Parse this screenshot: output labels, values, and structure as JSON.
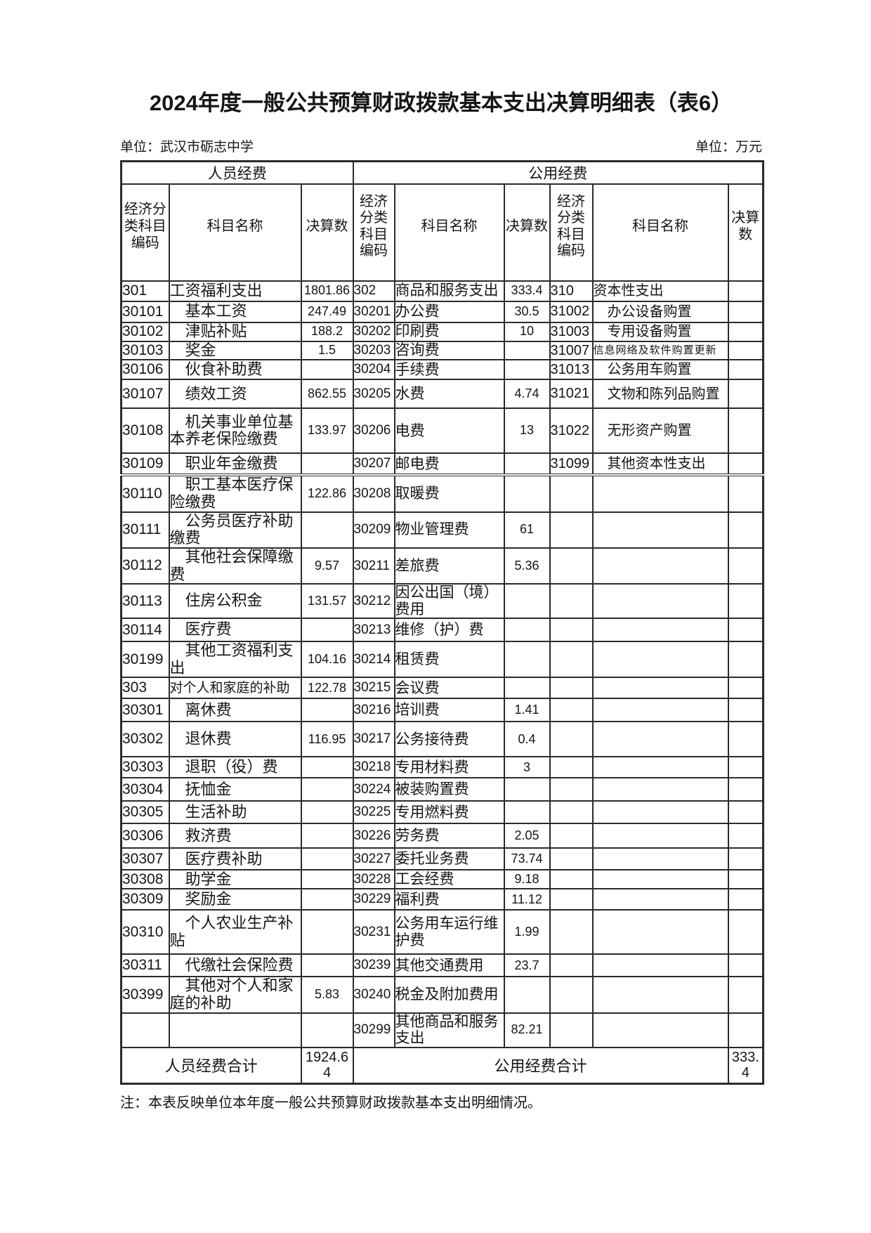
{
  "title": "2024年度一般公共预算财政拨款基本支出决算明细表（表6）",
  "unit_left": "单位：武汉市砺志中学",
  "unit_right": "单位：万元",
  "note": "注：本表反映单位本年度一般公共预算财政拨款基本支出明细情况。",
  "table": {
    "group_headers": [
      "人员经费",
      "公用经费"
    ],
    "col_headers": [
      "经济分类科目编码",
      "科目名称",
      "决算数",
      "经济分类科目编码",
      "科目名称",
      "决算数",
      "经济分类科目编码",
      "科目名称",
      "决算数"
    ],
    "rows": [
      {
        "l": {
          "code": "301",
          "name": "工资福利支出",
          "value": "1801.86",
          "indent": false
        },
        "m": {
          "code": "302",
          "name": "商品和服务支出",
          "value": "333.4"
        },
        "r": {
          "code": "310",
          "name": "资本性支出",
          "value": "",
          "indent": false
        }
      },
      {
        "l": {
          "code": "30101",
          "name": "基本工资",
          "value": "247.49",
          "indent": true
        },
        "m": {
          "code": "30201",
          "name": "办公费",
          "value": "30.5"
        },
        "r": {
          "code": "31002",
          "name": "办公设备购置",
          "value": "",
          "indent": true
        }
      },
      {
        "l": {
          "code": "30102",
          "name": "津贴补贴",
          "value": "188.2",
          "indent": true
        },
        "m": {
          "code": "30202",
          "name": "印刷费",
          "value": "10"
        },
        "r": {
          "code": "31003",
          "name": "专用设备购置",
          "value": "",
          "indent": true
        }
      },
      {
        "l": {
          "code": "30103",
          "name": "奖金",
          "value": "1.5",
          "indent": true
        },
        "m": {
          "code": "30203",
          "name": "咨询费",
          "value": ""
        },
        "r": {
          "code": "31007",
          "name": "信息网络及软件购置更新",
          "value": "",
          "indent": false,
          "small": true
        }
      },
      {
        "l": {
          "code": "30106",
          "name": "伙食补助费",
          "value": "",
          "indent": true
        },
        "m": {
          "code": "30204",
          "name": "手续费",
          "value": ""
        },
        "r": {
          "code": "31013",
          "name": "公务用车购置",
          "value": "",
          "indent": true
        }
      },
      {
        "l": {
          "code": "30107",
          "name": "绩效工资",
          "value": "862.55",
          "indent": true
        },
        "m": {
          "code": "30205",
          "name": "水费",
          "value": "4.74"
        },
        "r": {
          "code": "31021",
          "name": "文物和陈列品购置",
          "value": "",
          "indent": true
        }
      },
      {
        "l": {
          "code": "30108",
          "name": "机关事业单位基本养老保险缴费",
          "value": "133.97",
          "indent": true
        },
        "m": {
          "code": "30206",
          "name": "电费",
          "value": "13"
        },
        "r": {
          "code": "31022",
          "name": "无形资产购置",
          "value": "",
          "indent": true
        }
      },
      {
        "l": {
          "code": "30109",
          "name": "职业年金缴费",
          "value": "",
          "indent": true
        },
        "m": {
          "code": "30207",
          "name": "邮电费",
          "value": ""
        },
        "r": {
          "code": "31099",
          "name": "其他资本性支出",
          "value": "",
          "indent": true
        }
      },
      {
        "l": {
          "code": "30110",
          "name": "职工基本医疗保险缴费",
          "value": "122.86",
          "indent": true
        },
        "m": {
          "code": "30208",
          "name": "取暖费",
          "value": ""
        },
        "r": {
          "code": "",
          "name": "",
          "value": ""
        }
      },
      {
        "l": {
          "code": "30111",
          "name": "公务员医疗补助缴费",
          "value": "",
          "indent": true
        },
        "m": {
          "code": "30209",
          "name": "物业管理费",
          "value": "61"
        },
        "r": {
          "code": "",
          "name": "",
          "value": ""
        }
      },
      {
        "l": {
          "code": "30112",
          "name": "其他社会保障缴费",
          "value": "9.57",
          "indent": true
        },
        "m": {
          "code": "30211",
          "name": "差旅费",
          "value": "5.36"
        },
        "r": {
          "code": "",
          "name": "",
          "value": ""
        }
      },
      {
        "l": {
          "code": "30113",
          "name": "住房公积金",
          "value": "131.57",
          "indent": true
        },
        "m": {
          "code": "30212",
          "name": "因公出国（境）费用",
          "value": ""
        },
        "r": {
          "code": "",
          "name": "",
          "value": ""
        }
      },
      {
        "l": {
          "code": "30114",
          "name": "医疗费",
          "value": "",
          "indent": true
        },
        "m": {
          "code": "30213",
          "name": "维修（护）费",
          "value": ""
        },
        "r": {
          "code": "",
          "name": "",
          "value": ""
        }
      },
      {
        "l": {
          "code": "30199",
          "name": "其他工资福利支出",
          "value": "104.16",
          "indent": true
        },
        "m": {
          "code": "30214",
          "name": "租赁费",
          "value": ""
        },
        "r": {
          "code": "",
          "name": "",
          "value": ""
        }
      },
      {
        "l": {
          "code": "303",
          "name": "对个人和家庭的补助",
          "value": "122.78",
          "indent": false,
          "fit": true
        },
        "m": {
          "code": "30215",
          "name": "会议费",
          "value": ""
        },
        "r": {
          "code": "",
          "name": "",
          "value": ""
        }
      },
      {
        "l": {
          "code": "30301",
          "name": "离休费",
          "value": "",
          "indent": true
        },
        "m": {
          "code": "30216",
          "name": "培训费",
          "value": "1.41"
        },
        "r": {
          "code": "",
          "name": "",
          "value": ""
        }
      },
      {
        "l": {
          "code": "30302",
          "name": "退休费",
          "value": "116.95",
          "indent": true
        },
        "m": {
          "code": "30217",
          "name": "公务接待费",
          "value": "0.4"
        },
        "r": {
          "code": "",
          "name": "",
          "value": ""
        }
      },
      {
        "l": {
          "code": "30303",
          "name": "退职（役）费",
          "value": "",
          "indent": true
        },
        "m": {
          "code": "30218",
          "name": "专用材料费",
          "value": "3"
        },
        "r": {
          "code": "",
          "name": "",
          "value": ""
        }
      },
      {
        "l": {
          "code": "30304",
          "name": "抚恤金",
          "value": "",
          "indent": true
        },
        "m": {
          "code": "30224",
          "name": "被装购置费",
          "value": ""
        },
        "r": {
          "code": "",
          "name": "",
          "value": ""
        }
      },
      {
        "l": {
          "code": "30305",
          "name": "生活补助",
          "value": "",
          "indent": true
        },
        "m": {
          "code": "30225",
          "name": "专用燃料费",
          "value": ""
        },
        "r": {
          "code": "",
          "name": "",
          "value": ""
        }
      },
      {
        "l": {
          "code": "30306",
          "name": "救济费",
          "value": "",
          "indent": true
        },
        "m": {
          "code": "30226",
          "name": "劳务费",
          "value": "2.05"
        },
        "r": {
          "code": "",
          "name": "",
          "value": ""
        }
      },
      {
        "l": {
          "code": "30307",
          "name": "医疗费补助",
          "value": "",
          "indent": true
        },
        "m": {
          "code": "30227",
          "name": "委托业务费",
          "value": "73.74"
        },
        "r": {
          "code": "",
          "name": "",
          "value": ""
        }
      },
      {
        "l": {
          "code": "30308",
          "name": "助学金",
          "value": "",
          "indent": true
        },
        "m": {
          "code": "30228",
          "name": "工会经费",
          "value": "9.18"
        },
        "r": {
          "code": "",
          "name": "",
          "value": ""
        }
      },
      {
        "l": {
          "code": "30309",
          "name": "奖励金",
          "value": "",
          "indent": true
        },
        "m": {
          "code": "30229",
          "name": "福利费",
          "value": "11.12"
        },
        "r": {
          "code": "",
          "name": "",
          "value": ""
        }
      },
      {
        "l": {
          "code": "30310",
          "name": "个人农业生产补贴",
          "value": "",
          "indent": true
        },
        "m": {
          "code": "30231",
          "name": "公务用车运行维护费",
          "value": "1.99"
        },
        "r": {
          "code": "",
          "name": "",
          "value": ""
        }
      },
      {
        "l": {
          "code": "30311",
          "name": "代缴社会保险费",
          "value": "",
          "indent": true
        },
        "m": {
          "code": "30239",
          "name": "其他交通费用",
          "value": "23.7"
        },
        "r": {
          "code": "",
          "name": "",
          "value": ""
        }
      },
      {
        "l": {
          "code": "30399",
          "name": "其他对个人和家庭的补助",
          "value": "5.83",
          "indent": true
        },
        "m": {
          "code": "30240",
          "name": "税金及附加费用",
          "value": ""
        },
        "r": {
          "code": "",
          "name": "",
          "value": ""
        }
      },
      {
        "l": {
          "code": "",
          "name": "",
          "value": ""
        },
        "m": {
          "code": "30299",
          "name": "其他商品和服务支出",
          "value": "82.21"
        },
        "r": {
          "code": "",
          "name": "",
          "value": ""
        }
      }
    ],
    "totals": {
      "left_label": "人员经费合计",
      "left_value": "1924.64",
      "right_label": "公用经费合计",
      "right_value": "333.4"
    }
  }
}
